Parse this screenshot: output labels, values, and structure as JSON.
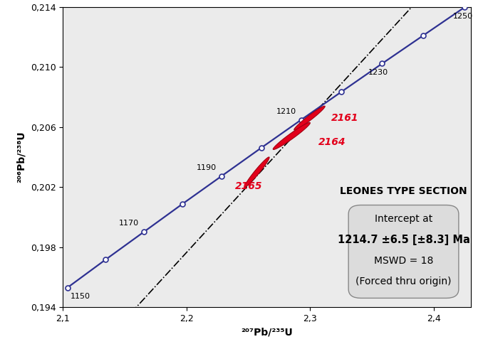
{
  "chart_data": {
    "type": "concordia",
    "xlabel": "²⁰⁷Pb/²³⁵U",
    "ylabel": "²⁰⁶Pb/²³⁸U",
    "xlim": [
      2.1,
      2.43
    ],
    "ylim": [
      0.194,
      0.214
    ],
    "xticks": [
      {
        "value": 2.1,
        "label": "2,1"
      },
      {
        "value": 2.2,
        "label": "2,2"
      },
      {
        "value": 2.3,
        "label": "2,3"
      },
      {
        "value": 2.4,
        "label": "2,4"
      }
    ],
    "yticks": [
      {
        "value": 0.194,
        "label": "0,194"
      },
      {
        "value": 0.198,
        "label": "0,198"
      },
      {
        "value": 0.202,
        "label": "0,202"
      },
      {
        "value": 0.206,
        "label": "0,206"
      },
      {
        "value": 0.21,
        "label": "0,210"
      },
      {
        "value": 0.214,
        "label": "0,214"
      }
    ],
    "concordia": {
      "color": "#2e3192",
      "marker": "o",
      "x": [
        2.1038,
        2.1345,
        2.1655,
        2.1968,
        2.2285,
        2.2604,
        2.2927,
        2.3253,
        2.3582,
        2.3914,
        2.425
      ],
      "y": [
        0.1953,
        0.19716,
        0.19901,
        0.20088,
        0.20274,
        0.20461,
        0.20648,
        0.20835,
        0.21023,
        0.2121,
        0.21399
      ],
      "labels": [
        "1150",
        null,
        "1170",
        null,
        "1190",
        null,
        "1210",
        null,
        "1230",
        null,
        "1250"
      ]
    },
    "discordia": {
      "color": "#000000",
      "line_style": "dashdot",
      "x": [
        0,
        2.43
      ],
      "y": [
        0,
        0.2183
      ]
    },
    "ellipses": {
      "color": "#e3001b",
      "names": [
        "2161",
        "2164",
        "2165"
      ],
      "x": [
        2.2995,
        2.285,
        2.257
      ],
      "y": [
        0.2066,
        0.2054,
        0.203
      ],
      "x_err": [
        0.0125,
        0.015,
        0.01
      ],
      "y_err": [
        0.0008,
        0.0009,
        0.001
      ],
      "rho": [
        0.97,
        0.97,
        0.97
      ]
    },
    "annotations": [
      "LEONES TYPE SECTION",
      "Intercept at",
      "1214.7 ±6.5 [±8.3] Ma",
      "MSWD = 18",
      "(Forced thru origin)"
    ]
  }
}
